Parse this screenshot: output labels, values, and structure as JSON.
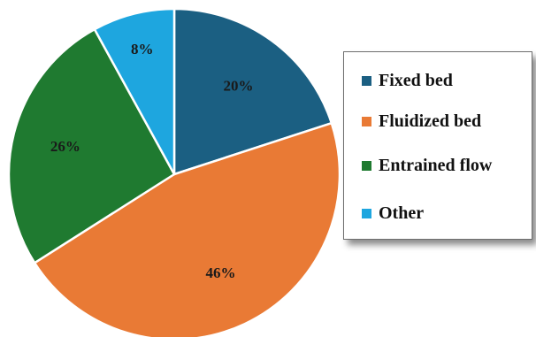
{
  "chart_data": {
    "type": "pie",
    "title": "",
    "start_angle_deg": 0,
    "direction": "clockwise",
    "legend_position": "right",
    "slices": [
      {
        "name": "Fixed bed",
        "value": 20,
        "label": "20%",
        "color": "#1b5f82"
      },
      {
        "name": "Fluidized bed",
        "value": 46,
        "label": "46%",
        "color": "#e97a35"
      },
      {
        "name": "Entrained flow",
        "value": 26,
        "label": "26%",
        "color": "#1f7a30"
      },
      {
        "name": "Other",
        "value": 8,
        "label": "8%",
        "color": "#1ea6df"
      }
    ]
  },
  "legend": {
    "items": [
      {
        "label": "Fixed bed",
        "color": "#1b5f82"
      },
      {
        "label": "Fluidized bed",
        "color": "#e97a35"
      },
      {
        "label": "Entrained flow",
        "color": "#1f7a30"
      },
      {
        "label": "Other",
        "color": "#1ea6df"
      }
    ]
  }
}
